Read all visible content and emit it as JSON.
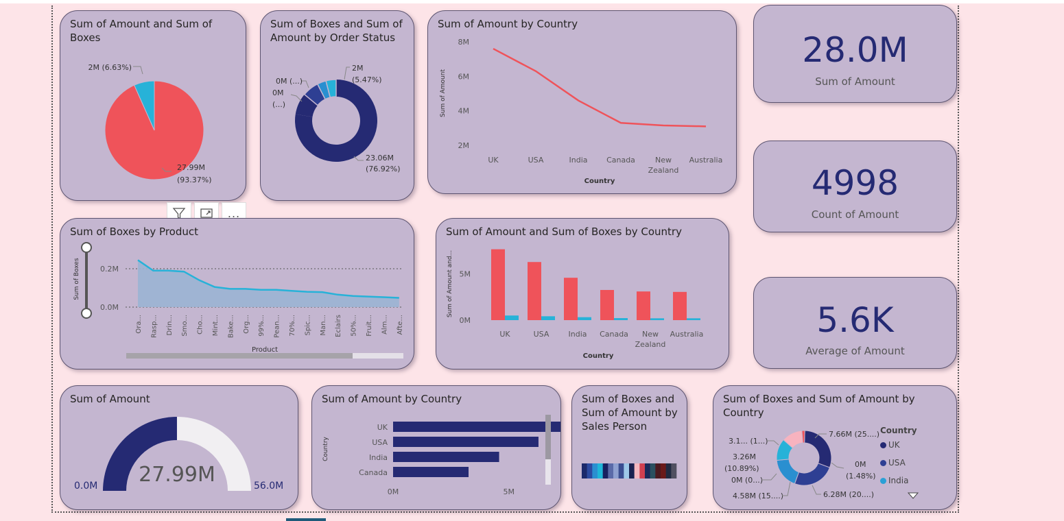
{
  "cards": {
    "pie": {
      "title": "Sum of Amount and Sum of Boxes",
      "labels": {
        "boxes": "2M (6.63%)",
        "amount_line1": "27.99M",
        "amount_line2": "(93.37%)"
      }
    },
    "donut_status": {
      "title": "Sum of Boxes and Sum of Amount by Order Status",
      "labels": {
        "a1": "0M (...)",
        "b1": "0M",
        "b2": "(...)",
        "c1": "2M",
        "c2": "(5.47%)",
        "d1": "23.06M",
        "d2": "(76.92%)"
      }
    },
    "line_country": {
      "title": "Sum of Amount by Country",
      "ylabel": "Sum of Amount",
      "xlabel": "Country",
      "yticks": [
        "8M",
        "6M",
        "4M",
        "2M"
      ]
    },
    "area_product": {
      "title": "Sum of Boxes by Product",
      "ylabel": "Sum of Boxes",
      "xlabel": "Product",
      "yticks": [
        "0.2M",
        "0.0M"
      ]
    },
    "bar_country": {
      "title": "Sum of Amount and Sum of Boxes by Country",
      "ylabel": "Sum of Amount and...",
      "xlabel": "Country",
      "yticks": [
        "5M",
        "0M"
      ]
    },
    "gauge": {
      "title": "Sum of Amount",
      "value": "27.99M",
      "min": "0.0M",
      "max": "56.0M"
    },
    "hbar_country": {
      "title": "Sum of Amount by Country",
      "ylabel": "Country",
      "xticks": [
        "0M",
        "5M"
      ]
    },
    "salesperson": {
      "title": "Sum of Boxes and Sum of Amount by Sales Person"
    },
    "donut_country": {
      "title": "Sum of Boxes and Sum of Amount by Country",
      "labels": {
        "l1": "3.1... (1...)",
        "l2a": "3.26M",
        "l2b": "(10.89%)",
        "l3": "0M (0...)",
        "l4": "4.58M (15....)",
        "r1": "7.66M (25....)",
        "r2a": "0M",
        "r2b": "(1.48%)",
        "r3": "6.28M (20....)"
      },
      "legend_title": "Country",
      "legend": [
        {
          "label": "UK",
          "color": "#252a73"
        },
        {
          "label": "USA",
          "color": "#2e3f93"
        },
        {
          "label": "India",
          "color": "#2aa0d6"
        }
      ]
    }
  },
  "kpis": [
    {
      "value": "28.0M",
      "label": "Sum of Amount"
    },
    {
      "value": "4998",
      "label": "Count of Amount"
    },
    {
      "value": "5.6K",
      "label": "Average of Amount"
    }
  ],
  "toolbar": {
    "filter_icon": "filter-icon",
    "focus_icon": "focus-mode-icon",
    "more_label": "..."
  },
  "colors": {
    "red": "#ef535a",
    "navy": "#252a73",
    "cyan": "#27b2d8",
    "card": "#c4b6d0",
    "bg": "#fde4e8"
  },
  "chart_data": [
    {
      "type": "pie",
      "title": "Sum of Amount and Sum of Boxes",
      "categories": [
        "Sum of Amount",
        "Sum of Boxes"
      ],
      "values": [
        27.99,
        2
      ],
      "percent": [
        93.37,
        6.63
      ],
      "unit": "M"
    },
    {
      "type": "pie",
      "title": "Sum of Boxes and Sum of Amount by Order Status",
      "donut": true,
      "values": [
        23.06,
        2,
        0,
        0
      ],
      "percent": [
        76.92,
        5.47,
        null,
        null
      ]
    },
    {
      "type": "line",
      "title": "Sum of Amount by Country",
      "categories": [
        "UK",
        "USA",
        "India",
        "Canada",
        "New Zealand",
        "Australia"
      ],
      "values": [
        7.6,
        6.3,
        4.6,
        3.3,
        3.15,
        3.1
      ],
      "ylim": [
        2,
        8
      ],
      "xlabel": "Country",
      "ylabel": "Sum of Amount",
      "unit": "M"
    },
    {
      "type": "area",
      "title": "Sum of Boxes by Product",
      "categories": [
        "Ora...",
        "Rasp...",
        "Drin...",
        "Smo...",
        "Cho...",
        "Mint...",
        "Bake...",
        "Org...",
        "99%...",
        "Pean...",
        "70%...",
        "Spic...",
        "Man...",
        "Eclairs",
        "50%...",
        "Fruit...",
        "Alm...",
        "Afte..."
      ],
      "values": [
        0.245,
        0.19,
        0.19,
        0.185,
        0.14,
        0.105,
        0.095,
        0.095,
        0.09,
        0.09,
        0.085,
        0.08,
        0.078,
        0.065,
        0.058,
        0.055,
        0.052,
        0.048
      ],
      "ylim": [
        0,
        0.3
      ],
      "xlabel": "Product",
      "ylabel": "Sum of Boxes",
      "unit": "M"
    },
    {
      "type": "bar",
      "title": "Sum of Amount and Sum of Boxes by Country",
      "categories": [
        "UK",
        "USA",
        "India",
        "Canada",
        "New Zealand",
        "Australia"
      ],
      "series": [
        {
          "name": "Sum of Amount",
          "values": [
            7.66,
            6.28,
            4.58,
            3.26,
            3.1,
            3.05
          ]
        },
        {
          "values": [
            0.5,
            0.42,
            0.32,
            0.22,
            0.2,
            0.2
          ]
        }
      ],
      "ylim": [
        0,
        8
      ],
      "xlabel": "Country",
      "unit": "M"
    },
    {
      "type": "gauge",
      "title": "Sum of Amount",
      "value": 27.99,
      "min": 0,
      "max": 56,
      "unit": "M"
    },
    {
      "type": "bar",
      "orientation": "horizontal",
      "title": "Sum of Amount by Country",
      "categories": [
        "UK",
        "USA",
        "India",
        "Canada"
      ],
      "values": [
        7.66,
        6.28,
        4.58,
        3.26
      ],
      "xlim": [
        0,
        8
      ],
      "ylabel": "Country",
      "unit": "M"
    },
    {
      "type": "heatmap",
      "title": "Sum of Boxes and Sum of Amount by Sales Person",
      "colors": [
        "#1b2a6b",
        "#2c4aa0",
        "#2a8fd0",
        "#1fb6d8",
        "#172060",
        "#5a6aa8",
        "#8ea0d0",
        "#3a4d90",
        "#9ec8e8",
        "#1a2250",
        "#f4b8c0",
        "#d04050",
        "#1a2a5a",
        "#2a5060",
        "#4a1a20",
        "#6a1a1a",
        "#202a40",
        "#505060"
      ]
    },
    {
      "type": "pie",
      "donut": true,
      "title": "Sum of Boxes and Sum of Amount by Country",
      "categories": [
        "UK",
        "USA",
        "India",
        "Canada",
        "New Zealand",
        "Australia"
      ],
      "values": [
        7.66,
        6.28,
        4.58,
        3.26,
        3.1,
        0.44
      ],
      "colors": [
        "#252a73",
        "#2e3f93",
        "#2a8fd0",
        "#27b2d8",
        "#f7b3bf",
        "#ef535a"
      ]
    }
  ]
}
